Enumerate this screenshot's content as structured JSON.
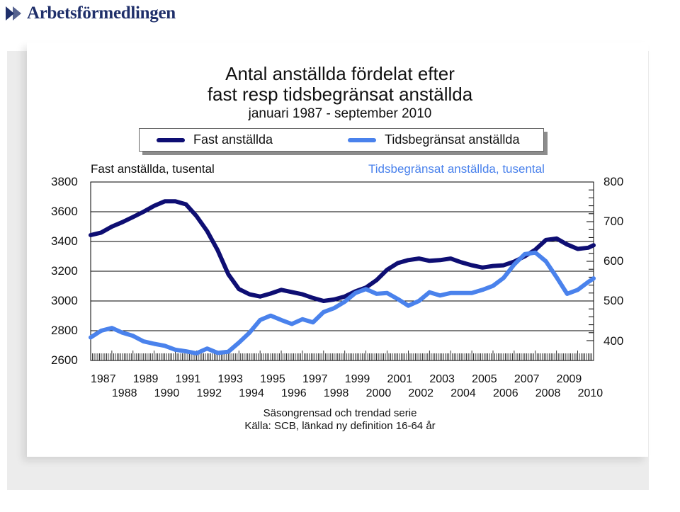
{
  "brand": {
    "name": "Arbetsförmedlingen"
  },
  "colors": {
    "fast": "#0e0e73",
    "tids": "#4a82ec",
    "grid": "#000000"
  },
  "chart_data": {
    "type": "line",
    "title": "Antal anställda fördelat efter",
    "title_line2": "fast resp tidsbegränsat anställda",
    "subtitle": "januari 1987 - september 2010",
    "legend": [
      "Fast anställda",
      "Tidsbegränsat anställda"
    ],
    "left_axis_label": "Fast anställda, tusental",
    "right_axis_label": "Tidsbegränsat anställda, tusental",
    "y_left_ticks": [
      "3800",
      "3600",
      "3400",
      "3200",
      "3000",
      "2800",
      "2600"
    ],
    "y_right_ticks": [
      "800",
      "700",
      "600",
      "500",
      "400"
    ],
    "x_ticks_row1": [
      "1987",
      "1989",
      "1991",
      "1993",
      "1995",
      "1997",
      "1999",
      "2001",
      "2003",
      "2005",
      "2007",
      "2009"
    ],
    "x_ticks_row2": [
      "1988",
      "1990",
      "1992",
      "1994",
      "1996",
      "1998",
      "2000",
      "2002",
      "2004",
      "2006",
      "2008",
      "2010"
    ],
    "y_left_range": [
      2600,
      3800
    ],
    "y_right_range": [
      350,
      800
    ],
    "grid": true,
    "legend_position": "top",
    "series": [
      {
        "name": "Fast anställda",
        "axis": "left",
        "points": [
          [
            1987.0,
            3443
          ],
          [
            1987.5,
            3460
          ],
          [
            1988.0,
            3500
          ],
          [
            1988.5,
            3530
          ],
          [
            1989.0,
            3565
          ],
          [
            1989.5,
            3600
          ],
          [
            1990.0,
            3640
          ],
          [
            1990.5,
            3670
          ],
          [
            1991.0,
            3670
          ],
          [
            1991.5,
            3650
          ],
          [
            1992.0,
            3570
          ],
          [
            1992.5,
            3470
          ],
          [
            1993.0,
            3340
          ],
          [
            1993.5,
            3180
          ],
          [
            1994.0,
            3080
          ],
          [
            1994.5,
            3045
          ],
          [
            1995.0,
            3030
          ],
          [
            1995.5,
            3050
          ],
          [
            1996.0,
            3075
          ],
          [
            1996.5,
            3060
          ],
          [
            1997.0,
            3045
          ],
          [
            1997.5,
            3020
          ],
          [
            1998.0,
            3000
          ],
          [
            1998.5,
            3010
          ],
          [
            1999.0,
            3030
          ],
          [
            1999.5,
            3065
          ],
          [
            2000.0,
            3090
          ],
          [
            2000.5,
            3140
          ],
          [
            2001.0,
            3210
          ],
          [
            2001.5,
            3255
          ],
          [
            2002.0,
            3275
          ],
          [
            2002.5,
            3285
          ],
          [
            2003.0,
            3270
          ],
          [
            2003.5,
            3275
          ],
          [
            2004.0,
            3285
          ],
          [
            2004.5,
            3260
          ],
          [
            2005.0,
            3240
          ],
          [
            2005.5,
            3225
          ],
          [
            2006.0,
            3235
          ],
          [
            2006.5,
            3240
          ],
          [
            2007.0,
            3265
          ],
          [
            2007.5,
            3300
          ],
          [
            2008.0,
            3345
          ],
          [
            2008.5,
            3410
          ],
          [
            2009.0,
            3420
          ],
          [
            2009.5,
            3380
          ],
          [
            2010.0,
            3350
          ],
          [
            2010.5,
            3358
          ],
          [
            2010.75,
            3375
          ]
        ]
      },
      {
        "name": "Tidsbegränsat anställda",
        "axis": "right",
        "points": [
          [
            1987.0,
            408
          ],
          [
            1987.5,
            425
          ],
          [
            1988.0,
            432
          ],
          [
            1988.5,
            420
          ],
          [
            1989.0,
            412
          ],
          [
            1989.5,
            398
          ],
          [
            1990.0,
            392
          ],
          [
            1990.5,
            387
          ],
          [
            1991.0,
            377
          ],
          [
            1991.5,
            373
          ],
          [
            1992.0,
            368
          ],
          [
            1992.5,
            380
          ],
          [
            1993.0,
            369
          ],
          [
            1993.5,
            372
          ],
          [
            1994.0,
            395
          ],
          [
            1994.5,
            420
          ],
          [
            1995.0,
            452
          ],
          [
            1995.5,
            463
          ],
          [
            1996.0,
            452
          ],
          [
            1996.5,
            442
          ],
          [
            1997.0,
            454
          ],
          [
            1997.5,
            446
          ],
          [
            1998.0,
            472
          ],
          [
            1998.5,
            482
          ],
          [
            1999.0,
            498
          ],
          [
            1999.5,
            520
          ],
          [
            2000.0,
            530
          ],
          [
            2000.5,
            518
          ],
          [
            2001.0,
            520
          ],
          [
            2001.5,
            505
          ],
          [
            2002.0,
            488
          ],
          [
            2002.5,
            500
          ],
          [
            2003.0,
            522
          ],
          [
            2003.5,
            514
          ],
          [
            2004.0,
            520
          ],
          [
            2004.5,
            520
          ],
          [
            2005.0,
            520
          ],
          [
            2005.5,
            528
          ],
          [
            2006.0,
            538
          ],
          [
            2006.5,
            558
          ],
          [
            2007.0,
            592
          ],
          [
            2007.5,
            618
          ],
          [
            2008.0,
            622
          ],
          [
            2008.5,
            600
          ],
          [
            2009.0,
            560
          ],
          [
            2009.5,
            518
          ],
          [
            2010.0,
            528
          ],
          [
            2010.5,
            548
          ],
          [
            2010.75,
            557
          ]
        ]
      }
    ]
  },
  "notes": {
    "line1": "Säsongrensad och trendad serie",
    "line2": "Källa: SCB, länkad ny definition 16-64 år"
  }
}
